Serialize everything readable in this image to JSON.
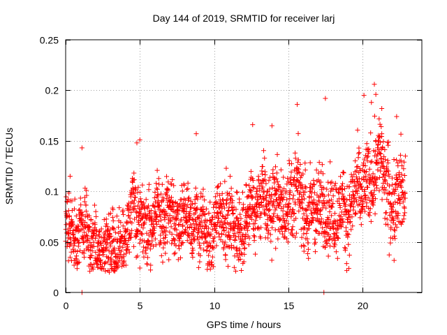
{
  "chart_data": {
    "type": "scatter",
    "title": "Day 144 of 2019, SRMTID for receiver larj",
    "xlabel": "GPS time / hours",
    "ylabel": "SRMTID / TECUs",
    "xlim": [
      0,
      24
    ],
    "ylim": [
      0,
      0.25
    ],
    "xticks": [
      0,
      5,
      10,
      15,
      20
    ],
    "xtick_labels": [
      "0",
      "5",
      "10",
      "15",
      "20"
    ],
    "yticks": [
      0,
      0.05,
      0.1,
      0.15,
      0.2,
      0.25
    ],
    "ytick_labels": [
      "0",
      "0.05",
      "0.1",
      "0.15",
      "0.2",
      "0.25"
    ],
    "grid": true,
    "marker": "+",
    "color": "#ff0000",
    "series": [
      {
        "name": "SRMTID",
        "x_start": 0.0,
        "x_step": 0.01,
        "x_end": 22.9,
        "note_trend_hours": [
          0,
          2.5,
          5,
          7,
          10,
          12.5,
          15,
          17.5,
          20,
          21,
          23
        ],
        "note_trend_values": [
          0.075,
          0.058,
          0.072,
          0.075,
          0.06,
          0.085,
          0.09,
          0.09,
          0.095,
          0.11,
          0.105
        ],
        "highlighted_points": [
          {
            "x": 0.3,
            "y": 0.115
          },
          {
            "x": 1.1,
            "y": 0.143
          },
          {
            "x": 1.1,
            "y": 0.0
          },
          {
            "x": 4.8,
            "y": 0.148
          },
          {
            "x": 5.0,
            "y": 0.151
          },
          {
            "x": 8.8,
            "y": 0.157
          },
          {
            "x": 12.6,
            "y": 0.166
          },
          {
            "x": 13.9,
            "y": 0.165
          },
          {
            "x": 15.6,
            "y": 0.186
          },
          {
            "x": 17.4,
            "y": 0.0
          },
          {
            "x": 17.5,
            "y": 0.192
          },
          {
            "x": 20.1,
            "y": 0.195
          },
          {
            "x": 20.6,
            "y": 0.188
          },
          {
            "x": 20.8,
            "y": 0.206
          },
          {
            "x": 20.9,
            "y": 0.196
          },
          {
            "x": 21.3,
            "y": 0.182
          },
          {
            "x": 22.3,
            "y": 0.174
          }
        ]
      }
    ]
  }
}
